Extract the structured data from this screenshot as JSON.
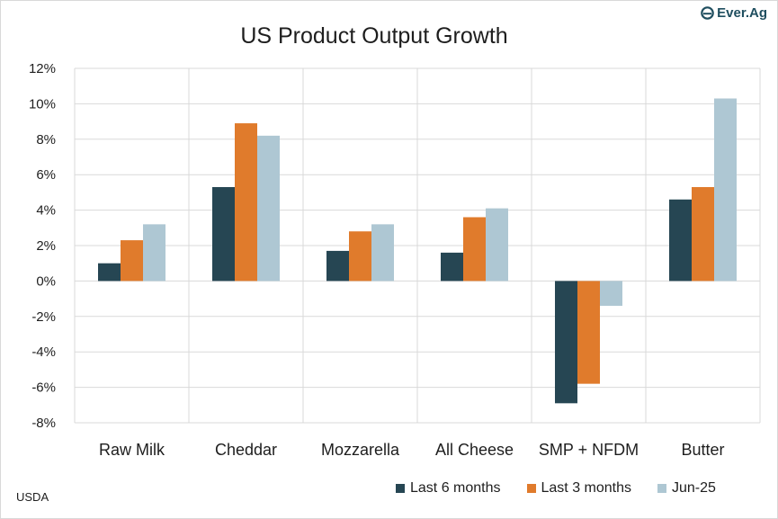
{
  "logo": {
    "text": "Ever.Ag",
    "icon": "ever-ag-leaf-icon"
  },
  "source": "USDA",
  "chart_data": {
    "type": "bar",
    "title": "US Product Output Growth",
    "categories": [
      "Raw Milk",
      "Cheddar",
      "Mozzarella",
      "All Cheese",
      "SMP + NFDM",
      "Butter"
    ],
    "series": [
      {
        "name": "Last 6 months",
        "color": "#264653",
        "values": [
          1.0,
          5.3,
          1.7,
          1.6,
          -6.9,
          4.6
        ]
      },
      {
        "name": "Last 3 months",
        "color": "#e07b2c",
        "values": [
          2.3,
          8.9,
          2.8,
          3.6,
          -5.8,
          5.3
        ]
      },
      {
        "name": "Jun-25",
        "color": "#aec7d3",
        "values": [
          3.2,
          8.2,
          3.2,
          4.1,
          -1.4,
          10.3
        ]
      }
    ],
    "ylim": [
      -8,
      12
    ],
    "yticks": [
      12,
      10,
      8,
      6,
      4,
      2,
      0,
      -2,
      -4,
      -6,
      -8
    ],
    "ytick_labels": [
      "12%",
      "10%",
      "8%",
      "6%",
      "4%",
      "2%",
      "0%",
      "-2%",
      "-4%",
      "-6%",
      "-8%"
    ],
    "xlabel": "",
    "ylabel": "",
    "grid": true,
    "legend": "bottom-right"
  }
}
